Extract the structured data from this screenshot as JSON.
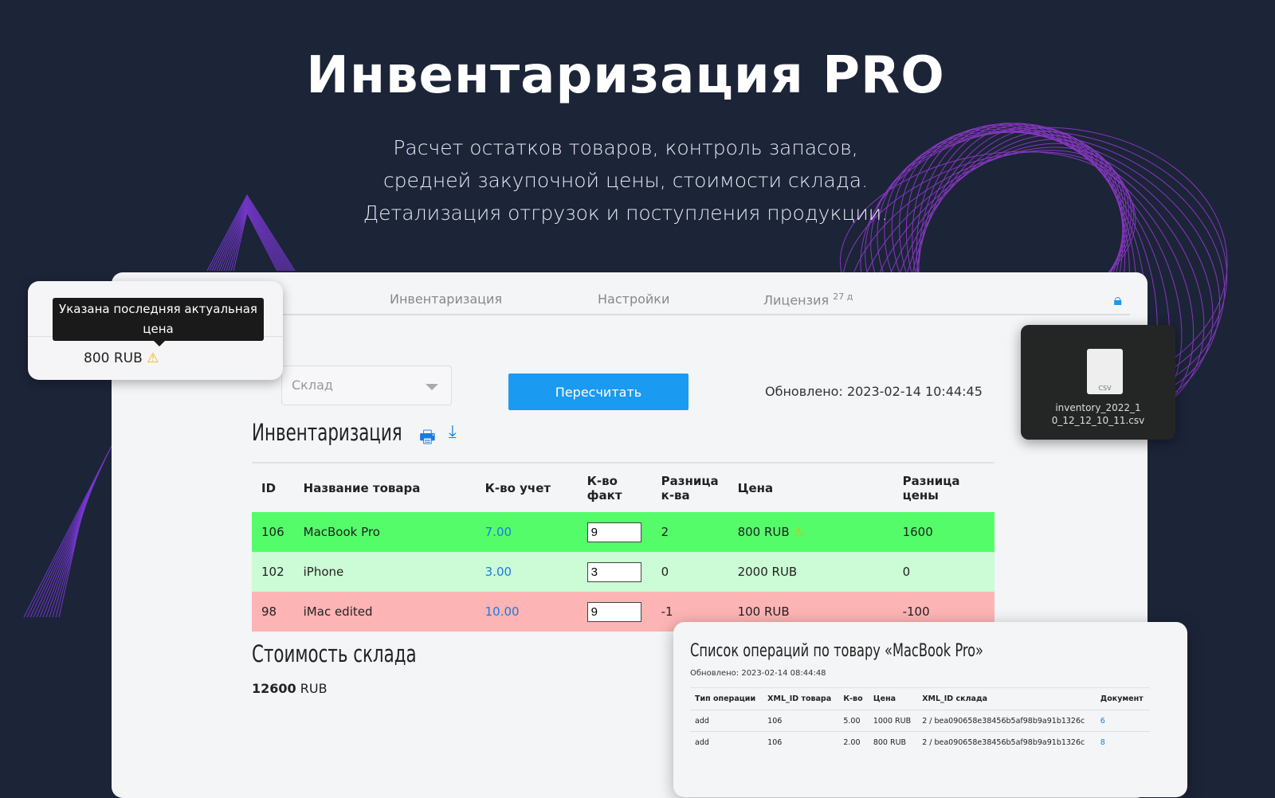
{
  "hero": {
    "title": "Инвентаризация PRO",
    "subtitle": [
      "Расчет остатков товаров, контроль запасов,",
      "средней закупочной цены, стоимости склада.",
      "Детализация отгрузок и поступления продукции."
    ]
  },
  "nav": {
    "items": [
      "Инвентаризация",
      "Настройки",
      "Лицензия"
    ],
    "license_badge": "27 д",
    "lock_icon": "lock-icon"
  },
  "controls": {
    "warehouse_placeholder": "Склад",
    "recalc": "Пересчитать",
    "updated": "Обновлено: 2023-02-14 10:44:45"
  },
  "inventory": {
    "title": "Инвентаризация",
    "columns": [
      "ID",
      "Название товара",
      "К-во учет",
      "К-во факт",
      "Разница к-ва",
      "Цена",
      "Разница цены"
    ],
    "rows": [
      {
        "id": "106",
        "name": "MacBook Pro",
        "qty": "7.00",
        "fact": "9",
        "diff": "2",
        "price": "800 RUB",
        "price_diff": "1600",
        "warning": true,
        "status": "increase"
      },
      {
        "id": "102",
        "name": "iPhone",
        "qty": "3.00",
        "fact": "3",
        "diff": "0",
        "price": "2000 RUB",
        "price_diff": "0",
        "status": "equal"
      },
      {
        "id": "98",
        "name": "iMac edited",
        "qty": "10.00",
        "fact": "9",
        "diff": "-1",
        "price": "100 RUB",
        "price_diff": "-100",
        "status": "decrease"
      }
    ]
  },
  "stock_value": {
    "title": "Стоимость склада",
    "amount": "12600",
    "currency": "RUB"
  },
  "tooltip": {
    "text": "Указана последняя актуальная цена",
    "value": "800 RUB"
  },
  "file": {
    "name": "inventory_2022_10_12_12_10_11.csv",
    "type": "CSV"
  },
  "operations": {
    "title": "Список операций по товару «MacBook Pro»",
    "updated": "Обновлено: 2023-02-14 08:44:48",
    "columns": [
      "Тип операции",
      "XML_ID товара",
      "К-во",
      "Цена",
      "XML_ID склада",
      "Документ"
    ],
    "rows": [
      [
        "add",
        "106",
        "5.00",
        "1000 RUB",
        "2 / bea090658e38456b5af98b9a91b1326c",
        "6"
      ],
      [
        "add",
        "106",
        "2.00",
        "800 RUB",
        "2 / bea090658e38456b5af98b9a91b1326c",
        "8"
      ]
    ]
  },
  "colors": {
    "background": "#1c2438",
    "accent": "#1a9af0",
    "row_increase": "#54fc6a",
    "row_equal": "#ccfcd5",
    "row_decrease": "#fdb4b4"
  }
}
